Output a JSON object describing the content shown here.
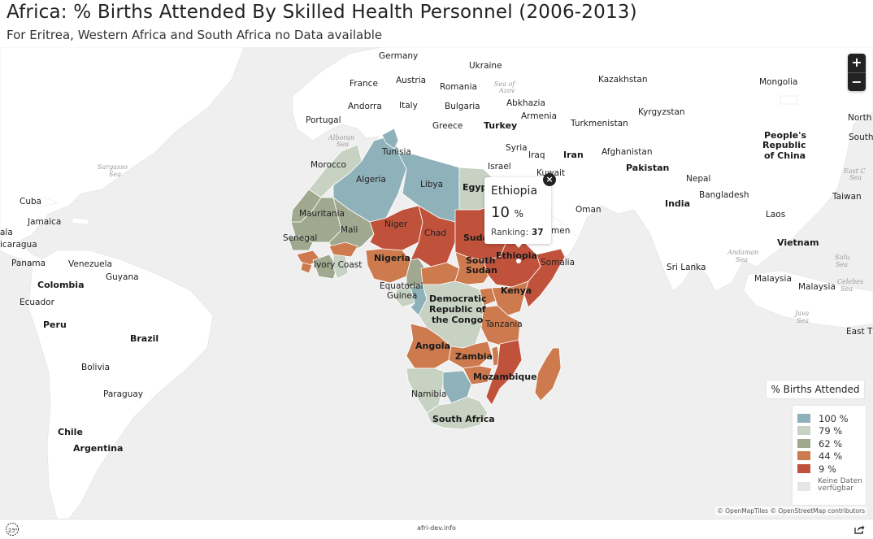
{
  "header": {
    "title": "Africa: % Births Attended By Skilled Health Personnel (2006-2013)",
    "subtitle": "For Eritrea, Western Africa and South Africa no Data available"
  },
  "zoom": {
    "in": "+",
    "out": "−"
  },
  "tooltip": {
    "country": "Ethiopia",
    "value": "10",
    "unit": "%",
    "ranking_label": "Ranking:",
    "ranking": "37",
    "close": "×"
  },
  "legend": {
    "title": "% Births Attended",
    "items": [
      {
        "label": "100 %",
        "color": "#8fb1ba"
      },
      {
        "label": "79 %",
        "color": "#c7d2c2"
      },
      {
        "label": "62 %",
        "color": "#a0a98f"
      },
      {
        "label": "44 %",
        "color": "#cd7a4f"
      },
      {
        "label": "9 %",
        "color": "#c0523c"
      }
    ],
    "no_data": [
      "Keine Daten",
      "verfügbar"
    ]
  },
  "map_labels": {
    "Germany": "Germany",
    "Ukraine": "Ukraine",
    "France": "France",
    "Austria": "Austria",
    "Romania": "Romania",
    "Kazakhstan": "Kazakhstan",
    "Mongolia": "Mongolia",
    "Andorra": "Andorra",
    "Italy": "Italy",
    "Bulgaria": "Bulgaria",
    "Abkhazia": "Abkhazia",
    "Kyrgyzstan": "Kyrgyzstan",
    "Portugal": "Portugal",
    "Greece": "Greece",
    "Turkey": "Turkey",
    "Armenia": "Armenia",
    "Turkmenistan": "Turkmenistan",
    "North": "North",
    "South": "South",
    "PRC1": "People's",
    "PRC2": "Republic",
    "PRC3": "of China",
    "Tunisia": "Tunisia",
    "Syria": "Syria",
    "Iraq": "Iraq",
    "Iran": "Iran",
    "Afghanistan": "Afghanistan",
    "Morocco": "Morocco",
    "Israel": "Israel",
    "Pakistan": "Pakistan",
    "Kuwait": "Kuwait",
    "Algeria": "Algeria",
    "Libya": "Libya",
    "Egypt": "Egyp",
    "Nepal": "Nepal",
    "Cuba": "Cuba",
    "Bangladesh": "Bangladesh",
    "Taiwan": "Taiwan",
    "India": "India",
    "Oman": "Oman",
    "Jamaica": "Jamaica",
    "Mauritania": "Mauritania",
    "Laos": "Laos",
    "Niger": "Niger",
    "Mali": "Mali",
    "Chad": "Chad",
    "Sudan": "Suda",
    "Yemen": "men",
    "Nicaragua": "icaragua",
    "Guatemala": "ala",
    "Senegal": "Senegal",
    "Vietnam": "Vietnam",
    "Panama": "Panama",
    "Venezuela": "Venezuela",
    "IvoryCoast": "Ivory Coast",
    "Nigeria": "Nigeria",
    "SouthSudan1": "South",
    "SouthSudan2": "Sudan",
    "Ethiopia": "Ethiopia",
    "Somalia": "Somalia",
    "SriLanka": "Sri Lanka",
    "Guyana": "Guyana",
    "Colombia": "Colombia",
    "EqGuinea1": "Equatorial",
    "EqGuinea2": "Guinea",
    "Kenya": "Kenya",
    "Malaysia1": "Malaysia",
    "Malaysia2": "Malaysia",
    "Ecuador": "Ecuador",
    "DRC1": "Democratic",
    "DRC2": "Republic of",
    "DRC3": "the Congo",
    "Peru": "Peru",
    "Tanzania": "Tanzania",
    "EastTimor": "East Tir",
    "Brazil": "Brazil",
    "Angola": "Angola",
    "Zambia": "Zambia",
    "Bolivia": "Bolivia",
    "Mozambique": "Mozambique",
    "Paraguay": "Paraguay",
    "Namibia": "Namibia",
    "SouthAfrica": "South Africa",
    "Chile": "Chile",
    "Argentina": "Argentina"
  },
  "sea_labels": {
    "azov1": "Sea of",
    "azov2": "Azov",
    "alboran1": "Alboran",
    "alboran2": "Sea",
    "sargasso1": "Sargasso",
    "sargasso2": "Sea",
    "eastchina1": "East C",
    "eastchina2": "Sea",
    "andaman1": "Andaman",
    "andaman2": "Sea",
    "sulu1": "Sulu",
    "sulu2": "Sea",
    "celebes1": "Celebes",
    "celebes2": "Sea",
    "java1": "Java",
    "java2": "Sea"
  },
  "attribution": "© OpenMapTiles © OpenStreetMap contributors",
  "footer": {
    "logo": "23°",
    "link": "afri-dev.info"
  }
}
